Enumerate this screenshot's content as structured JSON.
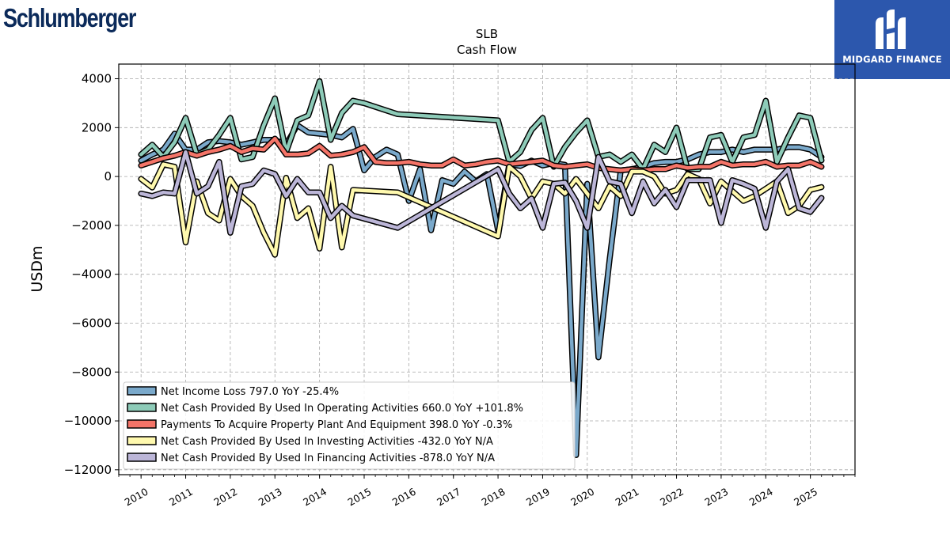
{
  "brand_left": {
    "text": "Schlumberger"
  },
  "brand_right": {
    "text": "MIDGARD FINANCE",
    "color": "#2c57ad"
  },
  "chart_data": {
    "type": "line",
    "title": "SLB",
    "subtitle": "Cash Flow",
    "ylabel": "USDm",
    "xlabel": "",
    "xlim": [
      2009.5,
      2026.0
    ],
    "ylim": [
      -12200,
      4600
    ],
    "yticks": [
      4000,
      2000,
      0,
      -2000,
      -4000,
      -6000,
      -8000,
      -10000,
      -12000
    ],
    "ytick_labels": [
      "4000",
      "2000",
      "0",
      "−2000",
      "−4000",
      "−6000",
      "−8000",
      "−10000",
      "−12000"
    ],
    "xticks": [
      2010,
      2011,
      2012,
      2013,
      2014,
      2015,
      2016,
      2017,
      2018,
      2019,
      2020,
      2021,
      2022,
      2023,
      2024,
      2025
    ],
    "xtick_labels": [
      "2010",
      "2011",
      "2012",
      "2013",
      "2014",
      "2015",
      "2016",
      "2017",
      "2018",
      "2019",
      "2020",
      "2021",
      "2022",
      "2023",
      "2024",
      "2025"
    ],
    "grid": true,
    "legend_position": "bottom-left",
    "series": [
      {
        "name": "Net Income Loss  797.0 YoY -25.4%",
        "color": "#7aa9cb",
        "points": [
          [
            2010.0,
            650
          ],
          [
            2010.25,
            900
          ],
          [
            2010.5,
            1100
          ],
          [
            2010.75,
            1750
          ],
          [
            2011.0,
            1100
          ],
          [
            2011.25,
            1100
          ],
          [
            2011.5,
            1400
          ],
          [
            2011.75,
            1450
          ],
          [
            2012.0,
            1400
          ],
          [
            2012.25,
            1300
          ],
          [
            2012.5,
            1400
          ],
          [
            2012.75,
            1500
          ],
          [
            2013.0,
            1500
          ],
          [
            2013.25,
            1300
          ],
          [
            2013.5,
            2100
          ],
          [
            2013.75,
            1800
          ],
          [
            2014.0,
            1750
          ],
          [
            2014.25,
            1700
          ],
          [
            2014.5,
            1600
          ],
          [
            2014.75,
            1950
          ],
          [
            2015.0,
            250
          ],
          [
            2015.25,
            800
          ],
          [
            2015.5,
            1100
          ],
          [
            2015.75,
            900
          ],
          [
            2016.0,
            -1000
          ],
          [
            2016.25,
            300
          ],
          [
            2016.5,
            -2200
          ],
          [
            2016.75,
            -150
          ],
          [
            2017.0,
            -300
          ],
          [
            2017.25,
            200
          ],
          [
            2017.5,
            -200
          ],
          [
            2017.75,
            100
          ],
          [
            2018.0,
            -2200
          ],
          [
            2018.25,
            500
          ],
          [
            2018.5,
            430
          ],
          [
            2018.75,
            650
          ],
          [
            2019.0,
            450
          ],
          [
            2019.25,
            550
          ],
          [
            2019.5,
            480
          ],
          [
            2019.75,
            -11400
          ],
          [
            2020.0,
            -300
          ],
          [
            2020.25,
            -7400
          ],
          [
            2020.5,
            -3400
          ],
          [
            2020.75,
            250
          ],
          [
            2021.0,
            300
          ],
          [
            2021.25,
            400
          ],
          [
            2021.5,
            550
          ],
          [
            2021.75,
            600
          ],
          [
            2022.0,
            600
          ],
          [
            2022.25,
            700
          ],
          [
            2022.5,
            900
          ],
          [
            2022.75,
            1000
          ],
          [
            2023.0,
            1000
          ],
          [
            2023.25,
            1100
          ],
          [
            2023.5,
            1000
          ],
          [
            2023.75,
            1100
          ],
          [
            2024.0,
            1100
          ],
          [
            2024.25,
            1100
          ],
          [
            2024.5,
            1200
          ],
          [
            2024.75,
            1200
          ],
          [
            2025.0,
            1100
          ],
          [
            2025.25,
            797
          ]
        ]
      },
      {
        "name": "Net Cash Provided By Used In Operating Activities  660.0 YoY +101.8%",
        "color": "#8dcbb8",
        "points": [
          [
            2010.0,
            900
          ],
          [
            2010.25,
            1300
          ],
          [
            2010.5,
            800
          ],
          [
            2010.75,
            1400
          ],
          [
            2011.0,
            2400
          ],
          [
            2011.25,
            900
          ],
          [
            2011.5,
            1100
          ],
          [
            2011.75,
            1700
          ],
          [
            2012.0,
            2400
          ],
          [
            2012.25,
            700
          ],
          [
            2012.5,
            800
          ],
          [
            2012.75,
            2100
          ],
          [
            2013.0,
            3200
          ],
          [
            2013.25,
            1000
          ],
          [
            2013.5,
            2300
          ],
          [
            2013.75,
            2500
          ],
          [
            2014.0,
            3900
          ],
          [
            2014.25,
            1500
          ],
          [
            2014.5,
            2600
          ],
          [
            2014.75,
            3100
          ],
          [
            2015.0,
            3000
          ],
          [
            2015.75,
            2550
          ],
          [
            2018.0,
            2300
          ],
          [
            2018.25,
            600
          ],
          [
            2018.5,
            1000
          ],
          [
            2018.75,
            1900
          ],
          [
            2019.0,
            2400
          ],
          [
            2019.25,
            400
          ],
          [
            2019.5,
            1200
          ],
          [
            2019.75,
            1800
          ],
          [
            2020.0,
            2300
          ],
          [
            2020.25,
            800
          ],
          [
            2020.5,
            900
          ],
          [
            2020.75,
            600
          ],
          [
            2021.0,
            900
          ],
          [
            2021.25,
            300
          ],
          [
            2021.5,
            1300
          ],
          [
            2021.75,
            1000
          ],
          [
            2022.0,
            2000
          ],
          [
            2022.25,
            300
          ],
          [
            2022.5,
            300
          ],
          [
            2022.75,
            1600
          ],
          [
            2023.0,
            1700
          ],
          [
            2023.25,
            600
          ],
          [
            2023.5,
            1600
          ],
          [
            2023.75,
            1700
          ],
          [
            2024.0,
            3100
          ],
          [
            2024.25,
            600
          ],
          [
            2024.5,
            1600
          ],
          [
            2024.75,
            2500
          ],
          [
            2025.0,
            2400
          ],
          [
            2025.25,
            660
          ]
        ]
      },
      {
        "name": "Payments To Acquire Property Plant And Equipment  398.0 YoY -0.3%",
        "color": "#f47468",
        "points": [
          [
            2010.0,
            450
          ],
          [
            2010.25,
            600
          ],
          [
            2010.5,
            750
          ],
          [
            2010.75,
            850
          ],
          [
            2011.0,
            1000
          ],
          [
            2011.25,
            850
          ],
          [
            2011.5,
            1000
          ],
          [
            2011.75,
            1100
          ],
          [
            2012.0,
            1250
          ],
          [
            2012.25,
            1000
          ],
          [
            2012.5,
            1150
          ],
          [
            2012.75,
            1100
          ],
          [
            2013.0,
            1550
          ],
          [
            2013.25,
            900
          ],
          [
            2013.5,
            900
          ],
          [
            2013.75,
            950
          ],
          [
            2014.0,
            1250
          ],
          [
            2014.25,
            850
          ],
          [
            2014.5,
            900
          ],
          [
            2014.75,
            1000
          ],
          [
            2015.0,
            1200
          ],
          [
            2015.25,
            600
          ],
          [
            2015.5,
            550
          ],
          [
            2015.75,
            550
          ],
          [
            2016.0,
            600
          ],
          [
            2016.25,
            500
          ],
          [
            2016.5,
            450
          ],
          [
            2016.75,
            450
          ],
          [
            2017.0,
            700
          ],
          [
            2017.25,
            450
          ],
          [
            2017.5,
            500
          ],
          [
            2017.75,
            600
          ],
          [
            2018.0,
            650
          ],
          [
            2018.25,
            500
          ],
          [
            2018.5,
            550
          ],
          [
            2018.75,
            600
          ],
          [
            2019.0,
            650
          ],
          [
            2019.25,
            450
          ],
          [
            2019.5,
            400
          ],
          [
            2019.75,
            450
          ],
          [
            2020.0,
            500
          ],
          [
            2020.25,
            350
          ],
          [
            2020.5,
            300
          ],
          [
            2020.75,
            250
          ],
          [
            2021.0,
            300
          ],
          [
            2021.25,
            250
          ],
          [
            2021.5,
            300
          ],
          [
            2021.75,
            300
          ],
          [
            2022.0,
            450
          ],
          [
            2022.25,
            350
          ],
          [
            2022.5,
            400
          ],
          [
            2022.75,
            400
          ],
          [
            2023.0,
            600
          ],
          [
            2023.25,
            450
          ],
          [
            2023.5,
            500
          ],
          [
            2023.75,
            500
          ],
          [
            2024.0,
            600
          ],
          [
            2024.25,
            400
          ],
          [
            2024.5,
            450
          ],
          [
            2024.75,
            450
          ],
          [
            2025.0,
            600
          ],
          [
            2025.25,
            398
          ]
        ]
      },
      {
        "name": "Net Cash Provided By Used In Investing Activities  -432.0 YoY N/A",
        "color": "#fff9ae",
        "points": [
          [
            2010.0,
            -100
          ],
          [
            2010.25,
            -450
          ],
          [
            2010.5,
            500
          ],
          [
            2010.75,
            400
          ],
          [
            2011.0,
            -2700
          ],
          [
            2011.25,
            -200
          ],
          [
            2011.5,
            -1500
          ],
          [
            2011.75,
            -1800
          ],
          [
            2012.0,
            -100
          ],
          [
            2012.25,
            -800
          ],
          [
            2012.5,
            -1200
          ],
          [
            2012.75,
            -2300
          ],
          [
            2013.0,
            -3200
          ],
          [
            2013.25,
            -50
          ],
          [
            2013.5,
            -1700
          ],
          [
            2013.75,
            -1300
          ],
          [
            2014.0,
            -2950
          ],
          [
            2014.25,
            400
          ],
          [
            2014.5,
            -2900
          ],
          [
            2014.75,
            -550
          ],
          [
            2015.75,
            -650
          ],
          [
            2018.0,
            -2450
          ],
          [
            2018.25,
            400
          ],
          [
            2018.5,
            0
          ],
          [
            2018.75,
            -900
          ],
          [
            2019.0,
            -200
          ],
          [
            2019.25,
            -300
          ],
          [
            2019.5,
            -700
          ],
          [
            2019.75,
            -100
          ],
          [
            2020.0,
            -700
          ],
          [
            2020.25,
            -1300
          ],
          [
            2020.5,
            -400
          ],
          [
            2020.75,
            -800
          ],
          [
            2021.0,
            200
          ],
          [
            2021.25,
            200
          ],
          [
            2021.5,
            0
          ],
          [
            2021.75,
            -700
          ],
          [
            2022.0,
            -550
          ],
          [
            2022.25,
            100
          ],
          [
            2022.5,
            -100
          ],
          [
            2022.75,
            -1100
          ],
          [
            2023.0,
            -200
          ],
          [
            2023.25,
            -600
          ],
          [
            2023.5,
            -1000
          ],
          [
            2023.75,
            -800
          ],
          [
            2024.0,
            -500
          ],
          [
            2024.25,
            -200
          ],
          [
            2024.5,
            -1500
          ],
          [
            2024.75,
            -1200
          ],
          [
            2025.0,
            -550
          ],
          [
            2025.25,
            -432
          ]
        ]
      },
      {
        "name": "Net Cash Provided By Used In Financing Activities  -878.0 YoY N/A",
        "color": "#bcb6d8",
        "points": [
          [
            2010.0,
            -700
          ],
          [
            2010.25,
            -800
          ],
          [
            2010.5,
            -650
          ],
          [
            2010.75,
            -700
          ],
          [
            2011.0,
            1000
          ],
          [
            2011.25,
            -700
          ],
          [
            2011.5,
            -400
          ],
          [
            2011.75,
            600
          ],
          [
            2012.0,
            -2300
          ],
          [
            2012.25,
            -400
          ],
          [
            2012.5,
            -300
          ],
          [
            2012.75,
            250
          ],
          [
            2013.0,
            100
          ],
          [
            2013.25,
            -800
          ],
          [
            2013.5,
            -100
          ],
          [
            2013.75,
            -650
          ],
          [
            2014.0,
            -650
          ],
          [
            2014.25,
            -1700
          ],
          [
            2014.5,
            -1200
          ],
          [
            2014.75,
            -1600
          ],
          [
            2015.75,
            -2100
          ],
          [
            2018.0,
            300
          ],
          [
            2018.25,
            -700
          ],
          [
            2018.5,
            -1300
          ],
          [
            2018.75,
            -900
          ],
          [
            2019.0,
            -2100
          ],
          [
            2019.25,
            -300
          ],
          [
            2019.5,
            -250
          ],
          [
            2019.75,
            -1000
          ],
          [
            2020.0,
            -2100
          ],
          [
            2020.25,
            800
          ],
          [
            2020.5,
            -200
          ],
          [
            2020.75,
            -300
          ],
          [
            2021.0,
            -1500
          ],
          [
            2021.25,
            -200
          ],
          [
            2021.5,
            -1100
          ],
          [
            2021.75,
            -550
          ],
          [
            2022.0,
            -1250
          ],
          [
            2022.25,
            -150
          ],
          [
            2022.5,
            -150
          ],
          [
            2022.75,
            -150
          ],
          [
            2023.0,
            -1900
          ],
          [
            2023.25,
            -150
          ],
          [
            2023.5,
            -300
          ],
          [
            2023.75,
            -500
          ],
          [
            2024.0,
            -2100
          ],
          [
            2024.25,
            -200
          ],
          [
            2024.5,
            300
          ],
          [
            2024.75,
            -1300
          ],
          [
            2025.0,
            -1450
          ],
          [
            2025.25,
            -878
          ]
        ]
      }
    ]
  }
}
